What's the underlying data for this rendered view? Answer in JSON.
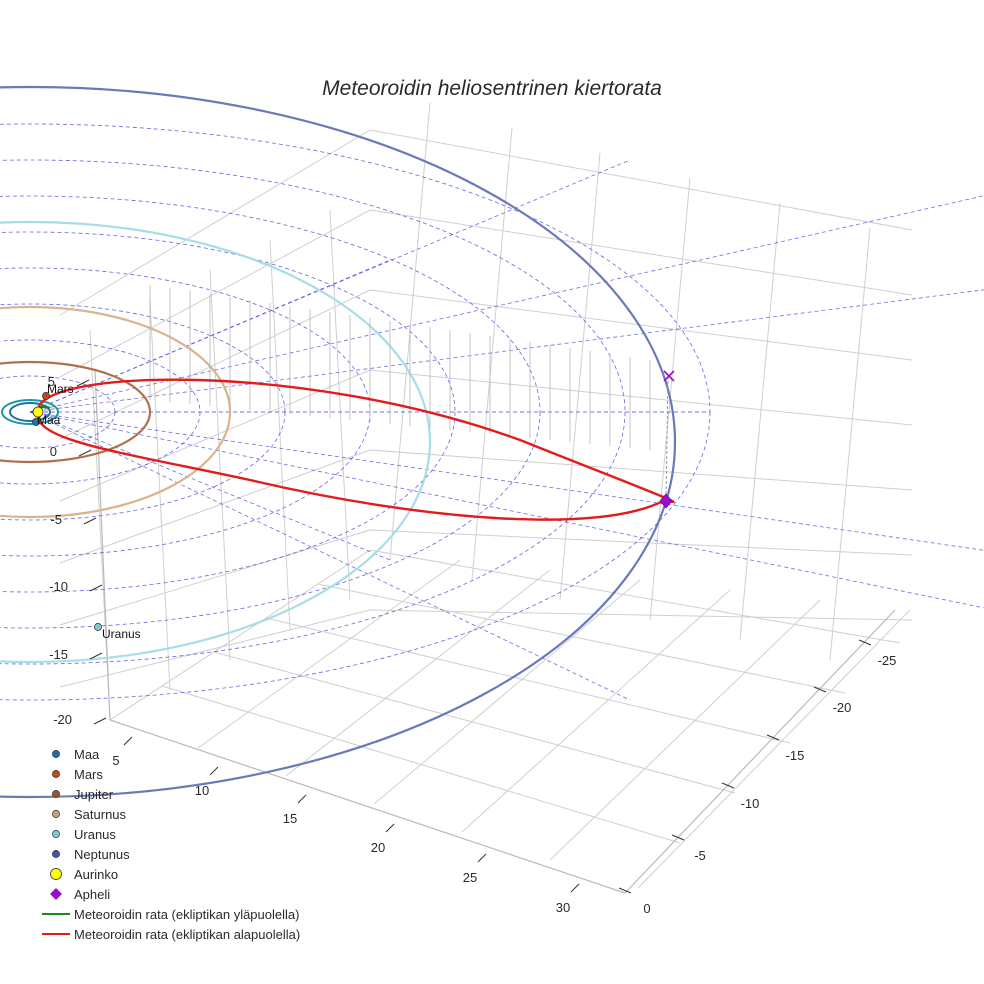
{
  "chart_data": {
    "type": "scatter3d",
    "title": "Meteoroidin heliosentrinen kiertorata",
    "axes": {
      "x": {
        "label": "",
        "ticks": [
          5,
          10,
          15,
          20,
          25,
          30
        ]
      },
      "y": {
        "label": "",
        "ticks": [
          -25,
          -20,
          -15,
          -10,
          -5,
          0
        ]
      },
      "z": {
        "label": "",
        "ticks": [
          5,
          0,
          -5,
          -10,
          -15,
          -20
        ]
      }
    },
    "planets": [
      {
        "name": "Maa",
        "color": "#1f6fa8",
        "label": "Maa"
      },
      {
        "name": "Mars",
        "color": "#c8461f",
        "label": "Mars"
      },
      {
        "name": "Jupiter",
        "color": "#a0522d",
        "label": ""
      },
      {
        "name": "Saturnus",
        "color": "#c8a070",
        "label": ""
      },
      {
        "name": "Uranus",
        "color": "#7ec8d8",
        "label": "Uranus"
      },
      {
        "name": "Neptunus",
        "color": "#3a56a8",
        "label": ""
      }
    ],
    "sun": {
      "name": "Aurinko",
      "color": "#ffff00"
    },
    "aphelion": {
      "name": "Apheli",
      "color": "#9a10c8"
    },
    "series": [
      {
        "name": "Meteoroidin rata (ekliptikan yläpuolella)",
        "color": "#1a8a1a"
      },
      {
        "name": "Meteoroidin rata (ekliptikan alapuolella)",
        "color": "#e01c1c"
      }
    ]
  },
  "legend": [
    {
      "label": "Maa",
      "marker": "circle",
      "color": "#1f6fa8"
    },
    {
      "label": "Mars",
      "marker": "circle",
      "color": "#c8461f"
    },
    {
      "label": "Jupiter",
      "marker": "circle",
      "color": "#a0522d"
    },
    {
      "label": "Saturnus",
      "marker": "circle",
      "color": "#c8a070"
    },
    {
      "label": "Uranus",
      "marker": "circle",
      "color": "#7ec8d8"
    },
    {
      "label": "Neptunus",
      "marker": "circle",
      "color": "#3a56a8"
    },
    {
      "label": "Aurinko",
      "marker": "big-circle",
      "color": "#ffff00"
    },
    {
      "label": "Apheli",
      "marker": "diamond",
      "color": "#9a10c8"
    },
    {
      "label": "Meteoroidin rata (ekliptikan yläpuolella)",
      "marker": "line",
      "color": "#1a8a1a"
    },
    {
      "label": "Meteoroidin rata (ekliptikan alapuolella)",
      "marker": "line",
      "color": "#e01c1c"
    }
  ]
}
